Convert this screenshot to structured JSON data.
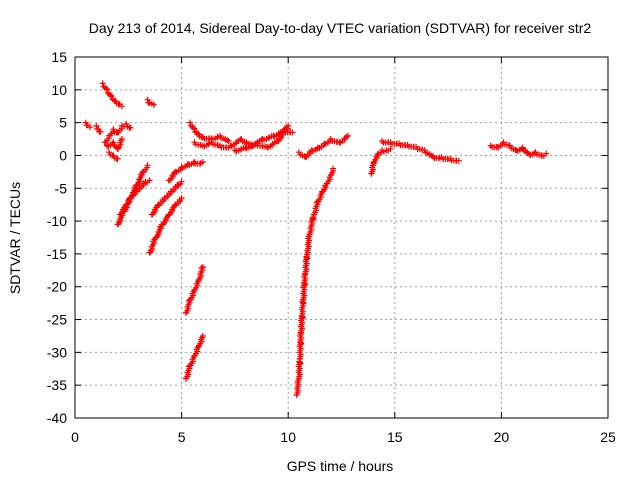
{
  "chart_data": {
    "type": "scatter",
    "title": "Day 213 of 2014, Sidereal Day-to-day VTEC variation (SDTVAR) for receiver str2",
    "xlabel": "GPS time / hours",
    "ylabel": "SDTVAR / TECUs",
    "xlim": [
      0,
      25
    ],
    "ylim": [
      -40,
      15
    ],
    "x_ticks": [
      0,
      5,
      10,
      15,
      20,
      25
    ],
    "y_ticks": [
      15,
      10,
      5,
      0,
      -5,
      -10,
      -15,
      -20,
      -25,
      -30,
      -35,
      -40
    ],
    "grid": true,
    "marker": "+",
    "marker_color": "#ff0000",
    "segments": [
      {
        "x": [
          0.5,
          0.6,
          0.7
        ],
        "y": [
          5.0,
          4.6,
          4.3
        ]
      },
      {
        "x": [
          1.0,
          1.1,
          1.2
        ],
        "y": [
          4.5,
          4.0,
          3.6
        ]
      },
      {
        "x": [
          1.3,
          1.5,
          1.7,
          1.9,
          2.1,
          2.2
        ],
        "y": [
          11.0,
          10.0,
          9.0,
          8.3,
          7.8,
          7.5
        ]
      },
      {
        "x": [
          1.4,
          1.6,
          1.8,
          2.0,
          2.2,
          2.4,
          2.6
        ],
        "y": [
          2.0,
          3.0,
          4.0,
          3.5,
          4.5,
          4.8,
          4.2
        ]
      },
      {
        "x": [
          1.5,
          1.8,
          2.0,
          2.2
        ],
        "y": [
          1.5,
          2.0,
          1.0,
          2.5
        ]
      },
      {
        "x": [
          1.6,
          1.8,
          2.0
        ],
        "y": [
          0.5,
          0.0,
          -0.5
        ]
      },
      {
        "x": [
          2.0,
          2.3,
          2.6,
          2.9,
          3.2,
          3.4
        ],
        "y": [
          -10.5,
          -8.5,
          -6.5,
          -4.5,
          -2.5,
          -1.5
        ]
      },
      {
        "x": [
          2.1,
          2.4,
          2.7,
          3.0,
          3.3,
          3.5
        ],
        "y": [
          -9.0,
          -7.5,
          -6.0,
          -5.0,
          -4.0,
          -3.8
        ]
      },
      {
        "x": [
          3.4,
          3.5,
          3.6,
          3.7
        ],
        "y": [
          8.5,
          8.0,
          7.9,
          7.7
        ]
      },
      {
        "x": [
          3.5,
          3.8,
          4.1,
          4.4,
          4.7,
          5.0
        ],
        "y": [
          -14.8,
          -12.5,
          -10.5,
          -9.0,
          -7.5,
          -6.5
        ]
      },
      {
        "x": [
          3.6,
          3.9,
          4.2,
          4.5,
          4.8,
          5.0
        ],
        "y": [
          -9.0,
          -7.5,
          -6.5,
          -5.5,
          -4.5,
          -4.0
        ]
      },
      {
        "x": [
          4.4,
          4.7,
          5.0,
          5.3,
          5.6,
          5.9,
          6.0
        ],
        "y": [
          -3.8,
          -2.5,
          -1.8,
          -1.3,
          -1.0,
          -1.2,
          -1.0
        ]
      },
      {
        "x": [
          5.2,
          5.4,
          5.6,
          5.8,
          6.0
        ],
        "y": [
          -24.0,
          -22.0,
          -20.5,
          -19.0,
          -17.0
        ]
      },
      {
        "x": [
          5.2,
          5.4,
          5.6,
          5.8,
          6.0
        ],
        "y": [
          -34.0,
          -32.0,
          -30.5,
          -29.0,
          -27.5
        ]
      },
      {
        "x": [
          5.4,
          5.6,
          5.8,
          6.0,
          6.4,
          6.8,
          7.2
        ],
        "y": [
          5.0,
          4.0,
          3.2,
          2.8,
          2.6,
          3.0,
          2.2
        ]
      },
      {
        "x": [
          5.6,
          6.0,
          6.4,
          6.8,
          7.2
        ],
        "y": [
          2.0,
          1.5,
          2.0,
          1.5,
          1.2
        ]
      },
      {
        "x": [
          7.3,
          7.8,
          8.3,
          8.8,
          9.3,
          9.8,
          10.2
        ],
        "y": [
          1.5,
          2.5,
          1.5,
          2.5,
          3.0,
          3.8,
          3.5
        ]
      },
      {
        "x": [
          7.5,
          8.0,
          8.5,
          9.0,
          9.5,
          10.0
        ],
        "y": [
          0.8,
          1.2,
          1.8,
          1.3,
          2.2,
          4.5
        ]
      },
      {
        "x": [
          10.4,
          10.5,
          10.55,
          10.6,
          10.7,
          10.8,
          10.9,
          11.0,
          11.2,
          11.4,
          11.6,
          11.8,
          12.0,
          12.1
        ],
        "y": [
          -36.5,
          -34.0,
          -31.0,
          -27.0,
          -22.0,
          -18.0,
          -14.5,
          -12.0,
          -9.0,
          -7.0,
          -5.5,
          -4.3,
          -3.0,
          -2.0
        ]
      },
      {
        "x": [
          10.5,
          10.8,
          11.1,
          11.4,
          11.7,
          12.0,
          12.4,
          12.8
        ],
        "y": [
          0.5,
          -0.2,
          0.8,
          1.2,
          1.8,
          2.5,
          2.0,
          3.0
        ]
      },
      {
        "x": [
          13.9,
          14.0,
          14.2,
          14.4,
          14.6,
          14.8
        ],
        "y": [
          -2.8,
          -1.0,
          0.2,
          0.8,
          0.8,
          1.0
        ]
      },
      {
        "x": [
          14.4,
          14.8,
          15.2,
          15.6,
          16.0,
          16.4,
          16.8,
          17.2,
          17.6,
          18.0
        ],
        "y": [
          2.2,
          2.0,
          1.8,
          1.6,
          1.3,
          0.8,
          -0.2,
          -0.3,
          -0.5,
          -0.8
        ]
      },
      {
        "x": [
          19.5,
          19.8,
          20.1,
          20.4,
          20.7,
          21.0,
          21.3,
          21.6,
          21.9,
          22.1
        ],
        "y": [
          1.5,
          1.3,
          2.0,
          1.5,
          0.8,
          1.2,
          0.2,
          0.5,
          0.0,
          0.3
        ]
      }
    ]
  }
}
